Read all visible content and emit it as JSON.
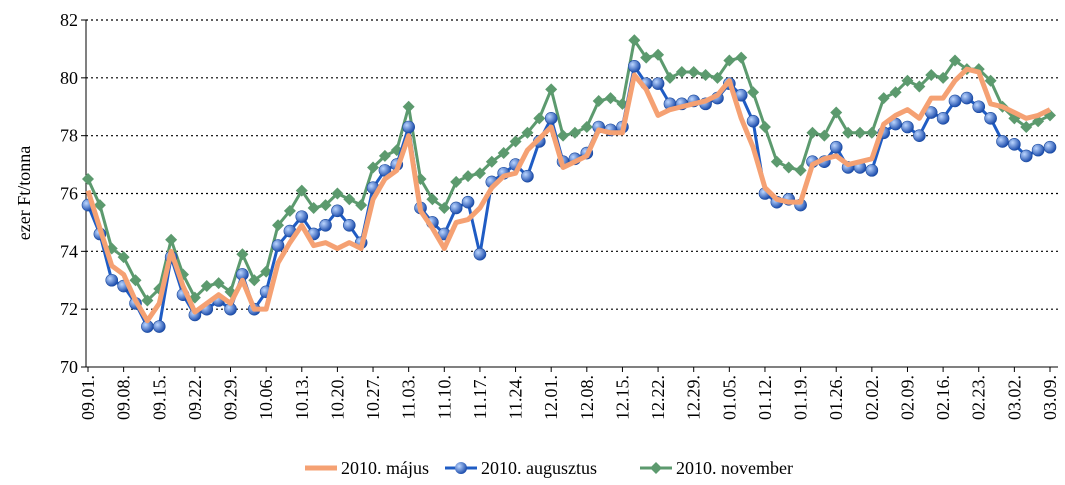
{
  "chart_data": {
    "type": "line",
    "ylabel": "ezer Ft/tonna",
    "categories": [
      "09.01.",
      null,
      null,
      "09.08.",
      null,
      null,
      "09.15.",
      null,
      null,
      "09.22.",
      null,
      null,
      "09.29.",
      null,
      null,
      "10.06.",
      null,
      null,
      "10.13.",
      null,
      null,
      "10.20.",
      null,
      null,
      "10.27.",
      null,
      null,
      "11.03.",
      null,
      null,
      "11.10.",
      null,
      null,
      "11.17.",
      null,
      null,
      "11.24.",
      null,
      null,
      "12.01.",
      null,
      null,
      "12.08.",
      null,
      null,
      "12.15.",
      null,
      null,
      "12.22.",
      null,
      null,
      "12.29.",
      null,
      null,
      "01.05.",
      null,
      null,
      "01.12.",
      null,
      null,
      "01.19.",
      null,
      null,
      "01.26.",
      null,
      null,
      "02.02.",
      null,
      null,
      "02.09.",
      null,
      null,
      "02.16.",
      null,
      null,
      "02.23.",
      null,
      null,
      "03.02.",
      null,
      null,
      "03.09."
    ],
    "series": [
      {
        "name": "2010. május",
        "color": "#f5a173",
        "marker": "none",
        "values": [
          76.1,
          74.8,
          73.5,
          73.2,
          72.3,
          71.6,
          72.2,
          74.0,
          72.8,
          71.9,
          72.2,
          72.5,
          72.2,
          73.0,
          72.0,
          72.0,
          73.6,
          74.3,
          74.9,
          74.2,
          74.3,
          74.1,
          74.3,
          74.1,
          75.8,
          76.5,
          76.8,
          78.0,
          75.4,
          74.8,
          74.1,
          75.0,
          75.1,
          75.5,
          76.2,
          76.6,
          76.7,
          77.5,
          77.9,
          78.3,
          76.9,
          77.1,
          77.3,
          78.2,
          78.1,
          78.1,
          80.1,
          79.6,
          78.7,
          78.9,
          79.0,
          79.1,
          79.2,
          79.4,
          79.9,
          78.6,
          77.6,
          76.2,
          75.8,
          75.7,
          75.7,
          77.0,
          77.2,
          77.3,
          77.0,
          77.1,
          77.2,
          78.4,
          78.7,
          78.9,
          78.6,
          79.3,
          79.3,
          79.9,
          80.3,
          80.2,
          79.1,
          79.0,
          78.8,
          78.6,
          78.7,
          78.9
        ]
      },
      {
        "name": "2010. augusztus",
        "color": "#1f5cc4",
        "marker": "circle",
        "values": [
          75.6,
          74.6,
          73.0,
          72.8,
          72.2,
          71.4,
          71.4,
          73.8,
          72.5,
          71.8,
          72.0,
          72.3,
          72.0,
          73.2,
          72.0,
          72.6,
          74.2,
          74.7,
          75.2,
          74.6,
          74.9,
          75.4,
          74.9,
          74.3,
          76.2,
          76.8,
          77.0,
          78.3,
          75.5,
          75.0,
          74.6,
          75.5,
          75.7,
          73.9,
          76.4,
          76.7,
          77.0,
          76.6,
          77.8,
          78.6,
          77.1,
          77.2,
          77.4,
          78.3,
          78.2,
          78.3,
          80.4,
          79.8,
          79.8,
          79.1,
          79.1,
          79.2,
          79.1,
          79.3,
          79.8,
          79.4,
          78.5,
          76.0,
          75.7,
          75.8,
          75.6,
          77.1,
          77.1,
          77.6,
          76.9,
          76.9,
          76.8,
          78.1,
          78.4,
          78.3,
          78.0,
          78.8,
          78.6,
          79.2,
          79.3,
          79.0,
          78.6,
          77.8,
          77.7,
          77.3,
          77.5,
          77.6
        ]
      },
      {
        "name": "2010. november",
        "color": "#5c9a6e",
        "marker": "diamond",
        "values": [
          76.5,
          75.6,
          74.1,
          73.8,
          73.0,
          72.3,
          72.7,
          74.4,
          73.2,
          72.4,
          72.8,
          72.9,
          72.6,
          73.9,
          73.0,
          73.3,
          74.9,
          75.4,
          76.1,
          75.5,
          75.6,
          76.0,
          75.8,
          75.6,
          76.9,
          77.3,
          77.5,
          79.0,
          76.5,
          75.8,
          75.5,
          76.4,
          76.6,
          76.7,
          77.1,
          77.4,
          77.8,
          78.1,
          78.6,
          79.6,
          78.0,
          78.1,
          78.3,
          79.2,
          79.3,
          79.1,
          81.3,
          80.7,
          80.8,
          80.0,
          80.2,
          80.2,
          80.1,
          80.0,
          80.6,
          80.7,
          79.5,
          78.3,
          77.1,
          76.9,
          76.8,
          78.1,
          78.0,
          78.8,
          78.1,
          78.1,
          78.1,
          79.3,
          79.5,
          79.9,
          79.7,
          80.1,
          80.0,
          80.6,
          80.3,
          80.3,
          79.9,
          79.0,
          78.6,
          78.3,
          78.5,
          78.7
        ]
      }
    ],
    "ylim": [
      70,
      82
    ],
    "yticks": [
      70,
      72,
      74,
      76,
      78,
      80,
      82
    ],
    "grid": true,
    "legend": "bottom"
  }
}
